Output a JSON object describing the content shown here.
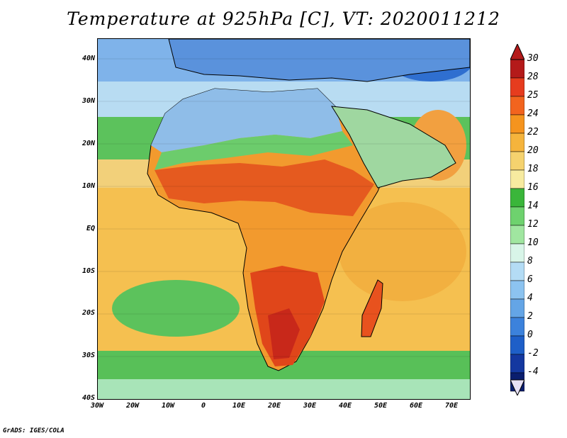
{
  "title": "Temperature at 925hPa [C], VT: 2020011212",
  "credit": "GrADS: IGES/COLA",
  "axes": {
    "lat_labels": [
      "40N",
      "30N",
      "20N",
      "10N",
      "EQ",
      "10S",
      "20S",
      "30S",
      "40S"
    ],
    "lon_labels": [
      "30W",
      "20W",
      "10W",
      "0",
      "10E",
      "20E",
      "30E",
      "40E",
      "50E",
      "60E",
      "70E"
    ],
    "lat_range": [
      -40,
      45
    ],
    "lon_range": [
      -30,
      75
    ]
  },
  "colorbar": {
    "labels": [
      "30",
      "28",
      "25",
      "24",
      "22",
      "20",
      "18",
      "16",
      "14",
      "12",
      "10",
      "8",
      "6",
      "4",
      "2",
      "0",
      "-2",
      "-4"
    ],
    "colors": [
      "#b41a1a",
      "#e63c1e",
      "#f2641e",
      "#f5941e",
      "#f5b43c",
      "#f5d26e",
      "#f7eba0",
      "#3ab63a",
      "#6ed26e",
      "#a0e6a0",
      "#d8f5e8",
      "#b4dcf5",
      "#8cc3f0",
      "#64a5e6",
      "#3c82dc",
      "#1e5fc8",
      "#1438a0",
      "#0a1e6e"
    ],
    "min_arrow_color": "#e6e0f5",
    "max_arrow_color": "#b41a1a"
  },
  "legend_colors": {
    "land_hot": "#e8521e",
    "land_warm": "#f2902a",
    "ocean_warm": "#f5c050",
    "cool_green": "#4fc04f",
    "cold_blue": "#6aa0e0"
  }
}
